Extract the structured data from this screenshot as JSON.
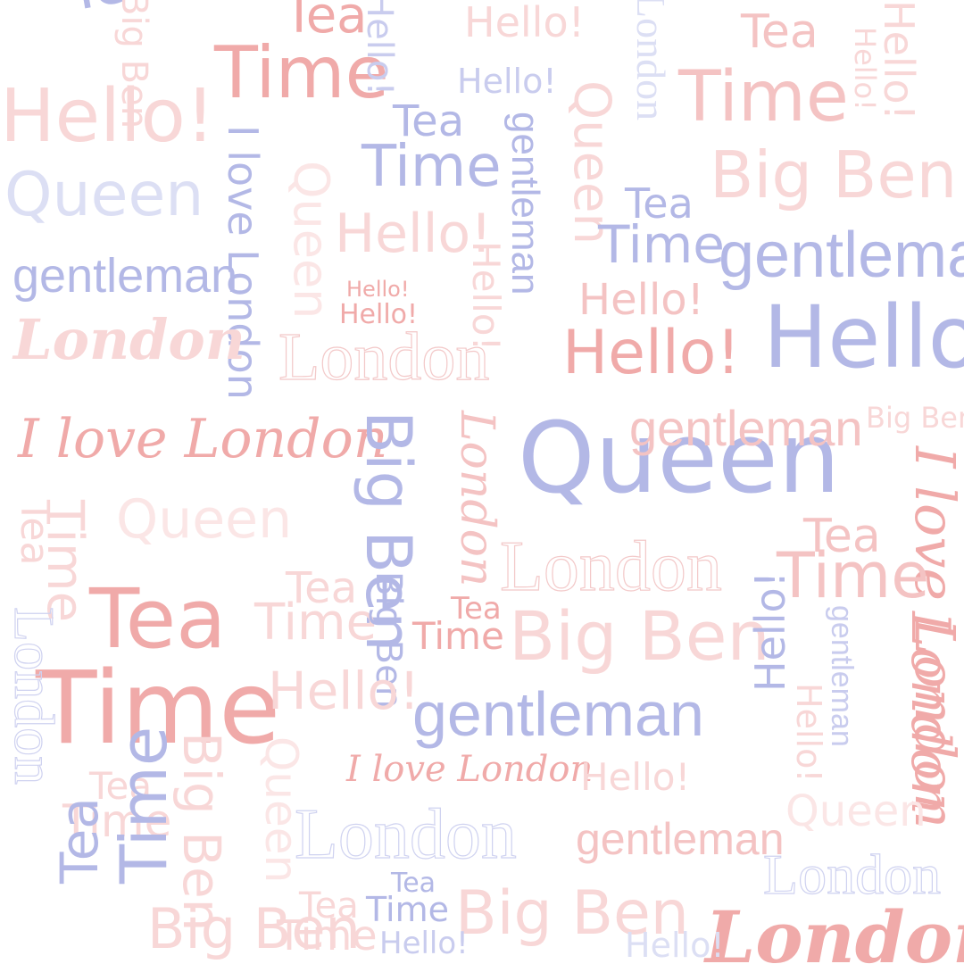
{
  "words": {
    "tea": "Tea",
    "time": "Time",
    "hello": "Hello!",
    "queen": "Queen",
    "gentleman": "gentleman",
    "london": "London",
    "i_love_london": "I love London",
    "big_ben": "Big Ben"
  },
  "palette": {
    "background": "#ffffff",
    "pink": "#f0aaa9",
    "blue": "#b3b8e6"
  }
}
